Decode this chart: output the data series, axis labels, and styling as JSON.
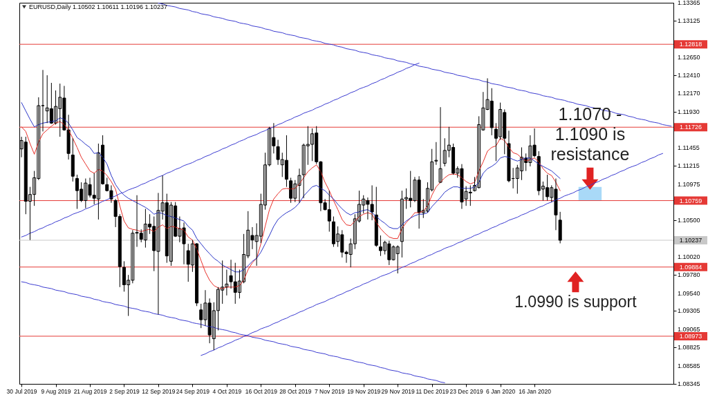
{
  "chart_data": {
    "type": "candlestick",
    "title": "EURUSD,Daily 1.10502 1.10611 1.10196 1.10237",
    "categories": [
      "30 Jul 2019",
      null,
      null,
      null,
      null,
      null,
      null,
      null,
      "9 Aug 2019",
      null,
      null,
      null,
      null,
      null,
      null,
      null,
      "21 Aug 2019",
      null,
      null,
      null,
      null,
      null,
      null,
      null,
      "2 Sep 2019",
      null,
      null,
      null,
      null,
      null,
      null,
      null,
      "12 Sep 2019",
      null,
      null,
      null,
      null,
      null,
      null,
      null,
      "24 Sep 2019",
      null,
      null,
      null,
      null,
      null,
      null,
      null,
      "4 Oct 2019",
      null,
      null,
      null,
      null,
      null,
      null,
      null,
      "16 Oct 2019",
      null,
      null,
      null,
      null,
      null,
      null,
      null,
      "28 Oct 2019",
      null,
      null,
      null,
      null,
      null,
      null,
      null,
      "7 Nov 2019",
      null,
      null,
      null,
      null,
      null,
      null,
      null,
      "19 Nov 2019",
      null,
      null,
      null,
      null,
      null,
      null,
      null,
      "29 Nov 2019",
      null,
      null,
      null,
      null,
      null,
      null,
      null,
      "11 Dec 2019",
      null,
      null,
      null,
      null,
      null,
      null,
      null,
      "23 Dec 2019",
      null,
      null,
      null,
      null,
      null,
      null,
      null,
      "6 Jan 2020",
      null,
      null,
      null,
      null,
      null,
      null,
      null,
      "16 Jan 2020",
      null,
      null,
      null,
      null,
      null,
      null,
      null,
      null,
      null,
      null,
      null,
      null,
      null,
      null,
      null,
      null,
      null,
      null,
      null,
      null,
      null,
      null,
      null,
      null,
      null,
      null,
      null,
      null,
      null,
      null,
      null,
      null
    ],
    "ohlc": [
      [
        1.1144,
        1.116,
        1.1133,
        1.1155
      ],
      [
        1.1153,
        1.116,
        1.1058,
        1.1075
      ],
      [
        1.1075,
        1.1094,
        1.1024,
        1.1084
      ],
      [
        1.1084,
        1.1115,
        1.1069,
        1.1106
      ],
      [
        1.1105,
        1.1212,
        1.1103,
        1.1201
      ],
      [
        1.1201,
        1.1248,
        1.1167,
        1.1201
      ],
      [
        1.1194,
        1.1241,
        1.1178,
        1.1198
      ],
      [
        1.1197,
        1.1231,
        1.1177,
        1.1178
      ],
      [
        1.1178,
        1.1221,
        1.1176,
        1.12
      ],
      [
        1.1197,
        1.123,
        1.116,
        1.1212
      ],
      [
        1.1211,
        1.1227,
        1.1168,
        1.1169
      ],
      [
        1.1169,
        1.1189,
        1.113,
        1.1138
      ],
      [
        1.1136,
        1.1158,
        1.1101,
        1.1108
      ],
      [
        1.1105,
        1.111,
        1.1065,
        1.1089
      ],
      [
        1.1091,
        1.11,
        1.1074,
        1.1076
      ],
      [
        1.1076,
        1.1105,
        1.1066,
        1.1099
      ],
      [
        1.1097,
        1.1106,
        1.108,
        1.1083
      ],
      [
        1.1083,
        1.1112,
        1.1071,
        1.1079
      ],
      [
        1.1078,
        1.1151,
        1.1051,
        1.1139
      ],
      [
        1.1149,
        1.1162,
        1.1097,
        1.1098
      ],
      [
        1.1097,
        1.1106,
        1.1088,
        1.1089
      ],
      [
        1.1089,
        1.1096,
        1.1073,
        1.1078
      ],
      [
        1.1076,
        1.1078,
        1.1041,
        1.1055
      ],
      [
        1.1055,
        1.1058,
        1.0962,
        1.0989
      ],
      [
        1.0988,
        1.0996,
        1.0956,
        1.0965
      ],
      [
        1.0965,
        1.0978,
        1.0924,
        1.0971
      ],
      [
        1.0971,
        1.1037,
        1.0967,
        1.1033
      ],
      [
        1.1033,
        1.1083,
        1.1015,
        1.1034
      ],
      [
        1.1033,
        1.1038,
        1.1021,
        1.1025
      ],
      [
        1.1024,
        1.1065,
        1.1014,
        1.1045
      ],
      [
        1.1045,
        1.1058,
        1.1032,
        1.1041
      ],
      [
        1.1042,
        1.1055,
        1.0983,
        1.101
      ],
      [
        1.1009,
        1.1086,
        1.0926,
        1.1063
      ],
      [
        1.1062,
        1.1109,
        1.1051,
        1.1073
      ],
      [
        1.1073,
        1.1085,
        1.0994,
        1.1003
      ],
      [
        1.0996,
        1.1074,
        1.099,
        1.107
      ],
      [
        1.1069,
        1.1074,
        1.1028,
        1.1029
      ],
      [
        1.1029,
        1.1055,
        1.1021,
        1.1039
      ],
      [
        1.104,
        1.1047,
        1.0992,
        1.1019
      ],
      [
        1.101,
        1.1019,
        1.0969,
        1.0992
      ],
      [
        1.0991,
        1.1024,
        1.0982,
        1.1019
      ],
      [
        1.1019,
        1.102,
        1.0937,
        1.0941
      ],
      [
        1.0932,
        1.094,
        1.0908,
        1.0919
      ],
      [
        1.0919,
        1.0958,
        1.0911,
        1.0941
      ],
      [
        1.0941,
        1.0947,
        1.0888,
        1.0899
      ],
      [
        1.0894,
        1.0942,
        1.0879,
        1.0931
      ],
      [
        1.0931,
        1.0962,
        1.0905,
        1.0959
      ],
      [
        1.0958,
        1.0997,
        1.094,
        1.0962
      ],
      [
        1.0962,
        1.0985,
        1.0951,
        1.0966
      ],
      [
        1.0977,
        1.0998,
        1.096,
        1.0969
      ],
      [
        1.0969,
        1.0994,
        1.094,
        1.0955
      ],
      [
        1.0955,
        1.0985,
        1.0947,
        1.097
      ],
      [
        1.0969,
        1.1032,
        1.0967,
        1.1005
      ],
      [
        1.1003,
        1.1062,
        1.1,
        1.1037
      ],
      [
        1.103,
        1.1041,
        1.1012,
        1.1024
      ],
      [
        1.1022,
        1.1046,
        1.099,
        1.103
      ],
      [
        1.1029,
        1.1085,
        1.102,
        1.1071
      ],
      [
        1.107,
        1.1139,
        1.1064,
        1.1123
      ],
      [
        1.1123,
        1.1173,
        1.1121,
        1.1171
      ],
      [
        1.1159,
        1.1178,
        1.1138,
        1.1148
      ],
      [
        1.1147,
        1.1156,
        1.1123,
        1.113
      ],
      [
        1.1123,
        1.1139,
        1.1107,
        1.113
      ],
      [
        1.1129,
        1.1162,
        1.1094,
        1.1104
      ],
      [
        1.1102,
        1.1106,
        1.1073,
        1.1079
      ],
      [
        1.1079,
        1.1103,
        1.1074,
        1.1098
      ],
      [
        1.1096,
        1.1118,
        1.1073,
        1.1109
      ],
      [
        1.111,
        1.1151,
        1.1079,
        1.1149
      ],
      [
        1.1148,
        1.1174,
        1.1123,
        1.115
      ],
      [
        1.115,
        1.1171,
        1.1128,
        1.1164
      ],
      [
        1.1165,
        1.1174,
        1.1124,
        1.1127
      ],
      [
        1.1127,
        1.1128,
        1.1062,
        1.1073
      ],
      [
        1.1073,
        1.1078,
        1.1063,
        1.1064
      ],
      [
        1.1064,
        1.1089,
        1.1035,
        1.1049
      ],
      [
        1.1048,
        1.1055,
        1.1015,
        1.1019
      ],
      [
        1.1022,
        1.1042,
        1.1015,
        1.1032
      ],
      [
        1.1031,
        1.1037,
        1.1001,
        1.1008
      ],
      [
        1.1008,
        1.101,
        1.0994,
        1.1006
      ],
      [
        1.1005,
        1.1026,
        1.0988,
        1.1019
      ],
      [
        1.1019,
        1.1058,
        1.1012,
        1.1052
      ],
      [
        1.1049,
        1.1089,
        1.1047,
        1.1071
      ],
      [
        1.107,
        1.1083,
        1.1059,
        1.1078
      ],
      [
        1.1076,
        1.108,
        1.1051,
        1.1071
      ],
      [
        1.1071,
        1.1096,
        1.105,
        1.1061
      ],
      [
        1.1057,
        1.1094,
        1.1015,
        1.1017
      ],
      [
        1.1015,
        1.103,
        1.1003,
        1.101
      ],
      [
        1.101,
        1.1023,
        1.1005,
        1.1021
      ],
      [
        1.1019,
        1.1023,
        1.0991,
        1.0998
      ],
      [
        1.0998,
        1.1017,
        1.0997,
        1.1015
      ],
      [
        1.1006,
        1.1017,
        1.098,
        1.1015
      ],
      [
        1.1022,
        1.1089,
        1.1001,
        1.1078
      ],
      [
        1.1078,
        1.1092,
        1.1065,
        1.108
      ],
      [
        1.1079,
        1.1115,
        1.1067,
        1.1076
      ],
      [
        1.1076,
        1.1107,
        1.1074,
        1.1103
      ],
      [
        1.1103,
        1.1108,
        1.1039,
        1.106
      ],
      [
        1.106,
        1.1078,
        1.1053,
        1.1063
      ],
      [
        1.1062,
        1.11,
        1.106,
        1.1092
      ],
      [
        1.109,
        1.1144,
        1.1088,
        1.1127
      ],
      [
        1.1128,
        1.1153,
        1.1123,
        1.1129
      ],
      [
        1.11,
        1.1199,
        1.1099,
        1.1118
      ],
      [
        1.1125,
        1.1158,
        1.1121,
        1.1142
      ],
      [
        1.1142,
        1.1173,
        1.1133,
        1.1149
      ],
      [
        1.1146,
        1.1151,
        1.111,
        1.1112
      ],
      [
        1.1112,
        1.1121,
        1.1106,
        1.1118
      ],
      [
        1.1118,
        1.1124,
        1.1065,
        1.1074
      ],
      [
        1.1078,
        1.1095,
        1.1069,
        1.1088
      ],
      [
        1.1087,
        1.1096,
        1.1069,
        1.1086
      ],
      [
        1.1089,
        1.1107,
        1.1088,
        1.1096
      ],
      [
        1.1093,
        1.1187,
        1.1092,
        1.1176
      ],
      [
        1.1169,
        1.1219,
        1.1168,
        1.1198
      ],
      [
        1.1196,
        1.1237,
        1.1195,
        1.1209
      ],
      [
        1.1207,
        1.1224,
        1.1162,
        1.1172
      ],
      [
        1.117,
        1.1178,
        1.1128,
        1.1158
      ],
      [
        1.116,
        1.1205,
        1.1156,
        1.1196
      ],
      [
        1.1192,
        1.1196,
        1.1137,
        1.1158
      ],
      [
        1.1151,
        1.1168,
        1.11,
        1.1102
      ],
      [
        1.1105,
        1.1119,
        1.1092,
        1.1105
      ],
      [
        1.1105,
        1.1123,
        1.1085,
        1.1119
      ],
      [
        1.1115,
        1.1146,
        1.1103,
        1.1133
      ],
      [
        1.1132,
        1.1138,
        1.1115,
        1.1126
      ],
      [
        1.1126,
        1.1162,
        1.1121,
        1.1148
      ],
      [
        1.1149,
        1.1171,
        1.1133,
        1.1135
      ],
      [
        1.1134,
        1.1141,
        1.1083,
        1.1089
      ],
      [
        1.1091,
        1.1101,
        1.1076,
        1.1095
      ],
      [
        1.1093,
        1.111,
        1.1076,
        1.1081
      ],
      [
        1.108,
        1.1096,
        1.1074,
        1.1093
      ],
      [
        1.1091,
        1.1105,
        1.1037,
        1.1057
      ],
      [
        1.10502,
        1.10611,
        1.10196,
        1.10237
      ],
      null,
      null,
      null,
      null,
      null,
      null,
      null,
      null,
      null,
      null,
      null,
      null,
      null,
      null,
      null,
      null,
      null,
      null,
      null,
      null,
      null,
      null,
      null,
      null,
      null,
      null
    ],
    "series": [
      {
        "type": "line",
        "color": "#e8302a",
        "values": [
          1.1173,
          1.1167,
          1.1151,
          1.1137,
          1.1153,
          1.1164,
          1.1169,
          1.1174,
          1.1178,
          1.118,
          1.1176,
          1.1169,
          1.1158,
          1.1146,
          1.1133,
          1.1124,
          1.1115,
          1.1112,
          1.1117,
          1.1115,
          1.1109,
          1.1101,
          1.1091,
          1.1069,
          1.1049,
          1.104,
          1.1038,
          1.1037,
          1.1035,
          1.1037,
          1.1038,
          1.1035,
          1.1041,
          1.1044,
          1.1039,
          1.1042,
          1.1041,
          1.1039,
          1.1037,
          1.1028,
          1.1024,
          1.1012,
          1.0997,
          1.0982,
          1.0971,
          1.0964,
          1.0961,
          1.096,
          1.0962,
          1.0962,
          1.0962,
          1.0964,
          1.0971,
          1.0985,
          1.0994,
          1.1,
          1.1019,
          1.1042,
          1.1064,
          1.1078,
          1.1085,
          1.1091,
          1.1092,
          1.1091,
          1.1092,
          1.1098,
          1.1106,
          1.1114,
          1.1119,
          1.1123,
          1.1114,
          1.11,
          1.1089,
          1.1076,
          1.1064,
          1.1051,
          1.1044,
          1.1043,
          1.1049,
          1.1055,
          1.1058,
          1.106,
          1.1058,
          1.1047,
          1.1039,
          1.1033,
          1.1028,
          1.1026,
          1.1026,
          1.1039,
          1.1047,
          1.1053,
          1.106,
          1.106,
          1.1062,
          1.1069,
          1.1083,
          1.1094,
          1.11,
          1.1106,
          1.111,
          1.1111,
          1.111,
          1.1106,
          1.1101,
          1.1098,
          1.11,
          1.1115,
          1.1127,
          1.1141,
          1.1146,
          1.1148,
          1.1158,
          1.1155,
          1.1146,
          1.1139,
          1.1137,
          1.1132,
          1.1128,
          1.113,
          1.1132,
          1.1127,
          1.1118,
          1.1112,
          1.1109,
          1.11,
          1.1089,
          null,
          null,
          null,
          null,
          null,
          null,
          null,
          null,
          null,
          null,
          null,
          null,
          null,
          null,
          null,
          null,
          null,
          null,
          null,
          null,
          null,
          null,
          null,
          null,
          null,
          null
        ]
      },
      {
        "type": "line",
        "color": "#2a36c8",
        "values": [
          1.1205,
          1.1194,
          1.1183,
          1.1173,
          1.1176,
          1.1178,
          1.1179,
          1.118,
          1.1181,
          1.1185,
          1.1183,
          1.1178,
          1.1169,
          1.1159,
          1.1155,
          1.115,
          1.1146,
          1.1138,
          1.1139,
          1.1133,
          1.1124,
          1.1109,
          1.1097,
          1.1089,
          1.1083,
          1.1079,
          1.1076,
          1.1073,
          1.107,
          1.1067,
          1.1063,
          1.1058,
          1.106,
          1.1059,
          1.1056,
          1.1055,
          1.1053,
          1.1051,
          1.1049,
          1.1042,
          1.1037,
          1.1026,
          1.1019,
          1.1012,
          1.1006,
          1.1,
          1.0996,
          1.0991,
          1.0988,
          1.0985,
          1.0982,
          1.0982,
          1.0985,
          1.099,
          1.0996,
          1.1,
          1.1008,
          1.1019,
          1.103,
          1.1042,
          1.1051,
          1.1056,
          1.106,
          1.1063,
          1.1067,
          1.1073,
          1.1082,
          1.1088,
          1.1094,
          1.1096,
          1.1092,
          1.1089,
          1.1083,
          1.1078,
          1.1071,
          1.1065,
          1.106,
          1.1057,
          1.106,
          1.1061,
          1.1063,
          1.1064,
          1.106,
          1.1055,
          1.105,
          1.1046,
          1.1041,
          1.1039,
          1.1039,
          1.1044,
          1.1049,
          1.1053,
          1.1056,
          1.1058,
          1.1058,
          1.106,
          1.1068,
          1.1074,
          1.108,
          1.1087,
          1.1091,
          1.1094,
          1.1094,
          1.1092,
          1.1092,
          1.1092,
          1.1094,
          1.11,
          1.1112,
          1.1118,
          1.1121,
          1.1125,
          1.1132,
          1.1134,
          1.1133,
          1.113,
          1.1128,
          1.113,
          1.1132,
          1.1132,
          1.1128,
          1.1124,
          1.1121,
          1.1118,
          1.1115,
          1.111,
          1.1105,
          null,
          null,
          null,
          null,
          null,
          null,
          null,
          null,
          null,
          null,
          null,
          null,
          null,
          null,
          null,
          null,
          null,
          null,
          null,
          null,
          null,
          null,
          null,
          null,
          null,
          null
        ]
      },
      {
        "type": "line",
        "color": "#3b3bd1",
        "values": [
          null,
          null,
          null,
          null,
          null,
          null,
          null,
          null,
          null,
          null,
          null,
          null,
          null,
          null,
          null,
          null,
          null,
          null,
          null,
          null,
          null,
          null,
          null,
          null,
          null,
          null,
          null,
          null,
          null,
          null,
          null,
          null,
          1.1336,
          1.1335,
          1.1333,
          1.1332,
          1.1331,
          1.1329,
          1.1328,
          1.1327,
          1.1325,
          1.1324,
          1.1322,
          1.1321,
          1.132,
          1.1318,
          1.1317,
          1.1316,
          1.1314,
          1.1313,
          1.1312,
          1.131,
          1.1309,
          1.1308,
          1.1306,
          1.1305,
          1.1304,
          1.1302,
          1.1301,
          1.1299,
          1.1298,
          1.1297,
          1.1295,
          1.1294,
          1.1293,
          1.1291,
          1.129,
          1.1289,
          1.1287,
          1.1286,
          1.1285,
          1.1283,
          1.1282,
          1.1281,
          1.1279,
          1.1278,
          1.1276,
          1.1275,
          1.1274,
          1.1272,
          1.1271,
          1.127,
          1.1268,
          1.1267,
          1.1266,
          1.1264,
          1.1263,
          1.1262,
          1.126,
          1.1259,
          1.1258,
          1.1256,
          1.1255,
          1.1253,
          1.1252,
          1.1251,
          1.1249,
          1.1248,
          1.1247,
          1.1245,
          1.1244,
          1.1243,
          1.1241,
          1.124,
          1.1239,
          1.1237,
          1.1236,
          1.1235,
          1.1233,
          1.1232,
          1.123,
          1.1229,
          1.1228,
          1.1226,
          1.1225,
          1.1224,
          1.1222,
          1.1221,
          1.122,
          1.1218,
          1.1217,
          1.1216,
          1.1214,
          1.1213,
          1.1212,
          1.121,
          1.1209,
          1.1208,
          1.1206,
          1.1205,
          1.1203,
          1.1202,
          1.1201,
          1.1199,
          1.1198,
          1.1197,
          1.1195,
          1.1194,
          1.1193,
          1.1191,
          1.119,
          1.1189,
          1.1187,
          1.1186,
          1.1184,
          1.1183,
          1.1182,
          1.118,
          1.1179,
          1.1178,
          1.1176,
          1.1175,
          1.1174
        ]
      },
      {
        "type": "line",
        "color": "#3b3bd1",
        "values": [
          1.1028,
          1.103,
          1.1033,
          1.1035,
          1.1038,
          1.104,
          1.1043,
          1.1045,
          1.1048,
          1.105,
          1.1053,
          1.1055,
          1.1058,
          1.106,
          1.1062,
          1.1065,
          1.1067,
          1.107,
          1.1072,
          1.1075,
          1.1077,
          1.108,
          1.1082,
          1.1085,
          1.1087,
          1.109,
          1.1092,
          1.1094,
          1.1097,
          1.1099,
          1.1102,
          1.1104,
          1.1107,
          1.1109,
          1.1112,
          1.1114,
          1.1117,
          1.1119,
          1.1122,
          1.1124,
          1.1126,
          1.1129,
          1.1131,
          1.1134,
          1.1136,
          1.1139,
          1.1141,
          1.1144,
          1.1146,
          1.1149,
          1.1151,
          1.1154,
          1.1156,
          1.1159,
          1.1161,
          1.1163,
          1.1166,
          1.1168,
          1.1171,
          1.1173,
          1.1176,
          1.1178,
          1.1181,
          1.1183,
          1.1186,
          1.1188,
          1.1191,
          1.1193,
          1.1195,
          1.1198,
          1.12,
          1.1203,
          1.1205,
          1.1208,
          1.121,
          1.1213,
          1.1215,
          1.1218,
          1.122,
          1.1223,
          1.1225,
          1.1227,
          1.123,
          1.1232,
          1.1235,
          1.1237,
          1.124,
          1.1242,
          1.1245,
          1.1247,
          1.125,
          1.1252,
          1.1255,
          1.1257,
          null,
          null,
          null,
          null,
          null,
          null,
          null,
          null,
          null,
          null,
          null,
          null,
          null,
          null,
          null,
          null,
          null,
          null,
          null,
          null,
          null,
          null,
          null,
          null,
          null,
          null,
          null,
          null,
          null,
          null,
          null,
          null,
          null,
          null,
          null,
          null,
          null,
          null,
          null,
          null,
          null,
          null,
          null,
          null,
          null,
          null,
          null,
          null,
          null,
          null,
          null,
          null,
          null,
          null,
          null,
          null,
          null,
          null,
          null
        ]
      },
      {
        "type": "line",
        "color": "#3b3bd1",
        "values": [
          null,
          null,
          null,
          null,
          null,
          null,
          null,
          null,
          null,
          null,
          null,
          null,
          null,
          null,
          null,
          null,
          null,
          null,
          null,
          null,
          null,
          null,
          null,
          null,
          null,
          null,
          null,
          null,
          null,
          null,
          null,
          null,
          null,
          null,
          null,
          null,
          null,
          null,
          null,
          null,
          null,
          null,
          1.0872,
          1.0874,
          1.0877,
          1.0879,
          1.0882,
          1.0884,
          1.0887,
          1.0889,
          1.0892,
          1.0894,
          1.0897,
          1.0899,
          1.0902,
          1.0904,
          1.0907,
          1.0909,
          1.0911,
          1.0914,
          1.0916,
          1.0919,
          1.0921,
          1.0924,
          1.0926,
          1.0929,
          1.0931,
          1.0934,
          1.0936,
          1.0939,
          1.0941,
          1.0943,
          1.0946,
          1.0948,
          1.0951,
          1.0953,
          1.0956,
          1.0958,
          1.0961,
          1.0963,
          1.0966,
          1.0968,
          1.0971,
          1.0973,
          1.0976,
          1.0978,
          1.098,
          1.0983,
          1.0985,
          1.0988,
          1.099,
          1.0993,
          1.0995,
          1.0998,
          1.1,
          1.1003,
          1.1005,
          1.1008,
          1.101,
          1.1013,
          1.1015,
          1.1017,
          1.102,
          1.1022,
          1.1025,
          1.1027,
          1.103,
          1.1032,
          1.1035,
          1.1037,
          1.104,
          1.1042,
          1.1045,
          1.1047,
          1.105,
          1.1052,
          1.1054,
          1.1057,
          1.1059,
          1.1062,
          1.1064,
          1.1067,
          1.1069,
          1.1072,
          1.1074,
          1.1077,
          1.1079,
          1.1082,
          1.1084,
          1.1086,
          1.1089,
          1.1091,
          1.1094,
          1.1096,
          1.1099,
          1.1101,
          1.1104,
          1.1106,
          1.1109,
          1.1111,
          1.1114,
          1.1116,
          1.1119,
          1.1121,
          1.1123,
          1.1126,
          1.1128,
          1.1131,
          1.1133,
          1.1136,
          1.1138,
          null,
          null
        ]
      },
      {
        "type": "line",
        "color": "#3b3bd1",
        "values": [
          1.0969,
          1.0968,
          1.0966,
          1.0965,
          1.0964,
          1.0962,
          1.0961,
          1.096,
          1.0958,
          1.0957,
          1.0956,
          1.0954,
          1.0953,
          1.0952,
          1.095,
          1.0949,
          1.0948,
          1.0946,
          1.0945,
          1.0943,
          1.0942,
          1.0941,
          1.0939,
          1.0938,
          1.0937,
          1.0935,
          1.0934,
          1.0933,
          1.0931,
          1.093,
          1.0929,
          1.0927,
          1.0926,
          1.0925,
          1.0923,
          1.0922,
          1.0921,
          1.0919,
          1.0918,
          1.0917,
          1.0915,
          1.0914,
          1.0913,
          1.0911,
          1.091,
          1.0909,
          1.0907,
          1.0906,
          1.0905,
          1.0903,
          1.0902,
          1.09,
          1.0899,
          1.0898,
          1.0896,
          1.0895,
          1.0894,
          1.0892,
          1.0891,
          1.089,
          1.0888,
          1.0887,
          1.0886,
          1.0884,
          1.0883,
          1.0882,
          1.088,
          1.0879,
          1.0878,
          1.0876,
          1.0875,
          1.0874,
          1.0872,
          1.0871,
          1.087,
          1.0868,
          1.0867,
          1.0866,
          1.0864,
          1.0863,
          1.0862,
          1.086,
          1.0859,
          1.0858,
          1.0856,
          1.0855,
          1.0853,
          1.0852,
          1.0851,
          1.0849,
          1.0848,
          1.0847,
          1.0845,
          1.0844,
          1.0843,
          1.0841,
          1.084,
          1.0839,
          1.0837,
          1.0836,
          null,
          null,
          null,
          null,
          null,
          null,
          null,
          null,
          null,
          null,
          null,
          null,
          null,
          null,
          null,
          null,
          null,
          null,
          null,
          null,
          null,
          null,
          null,
          null,
          null,
          null,
          null,
          null,
          null,
          null,
          null,
          null,
          null,
          null,
          null,
          null,
          null,
          null,
          null,
          null,
          null,
          null,
          null,
          null,
          null,
          null,
          null,
          null,
          null,
          null,
          null,
          null,
          null
        ]
      }
    ],
    "ylim": [
      1.08345,
      1.13365
    ],
    "yticks": [
      1.13365,
      1.13125,
      {
        "value": 1.1265,
        "label": "1.12650"
      },
      {
        "value": 1.1241,
        "label": "1.12410"
      },
      {
        "value": 1.1217,
        "label": "1.12170"
      },
      {
        "value": 1.1193,
        "label": "1.11930"
      },
      1.11455,
      1.11215,
      1.10975,
      {
        "value": 1.105,
        "label": "1.10500"
      },
      {
        "value": 1.1002,
        "label": "1.10020"
      },
      {
        "value": 1.0978,
        "label": "1.09780"
      },
      {
        "value": 1.0954,
        "label": "1.09540"
      },
      1.09305,
      1.09065,
      1.08825,
      1.08585,
      1.08345
    ],
    "ref_lines": [
      {
        "axis": "y",
        "value": 1.12818,
        "label": "1.12818",
        "color": "#e53935"
      },
      {
        "axis": "y",
        "value": 1.11726,
        "label": "1.11726",
        "color": "#e53935"
      },
      {
        "axis": "y",
        "value": 1.10759,
        "label": "1.10759",
        "color": "#e53935"
      },
      {
        "axis": "y",
        "value": 1.10237,
        "label": "1.10237",
        "color": "#c8c8c8"
      },
      {
        "axis": "y",
        "value": 1.09884,
        "label": "1.09884",
        "color": "#e53935"
      },
      {
        "axis": "y",
        "value": 1.08973,
        "label": "1.08973",
        "color": "#e53935"
      }
    ],
    "annotations": [
      {
        "text": "1.1070 - 1.1090 is resistance",
        "y": 1.1094
      },
      {
        "text": "1.0990 is support",
        "y": 1.0988
      }
    ]
  }
}
